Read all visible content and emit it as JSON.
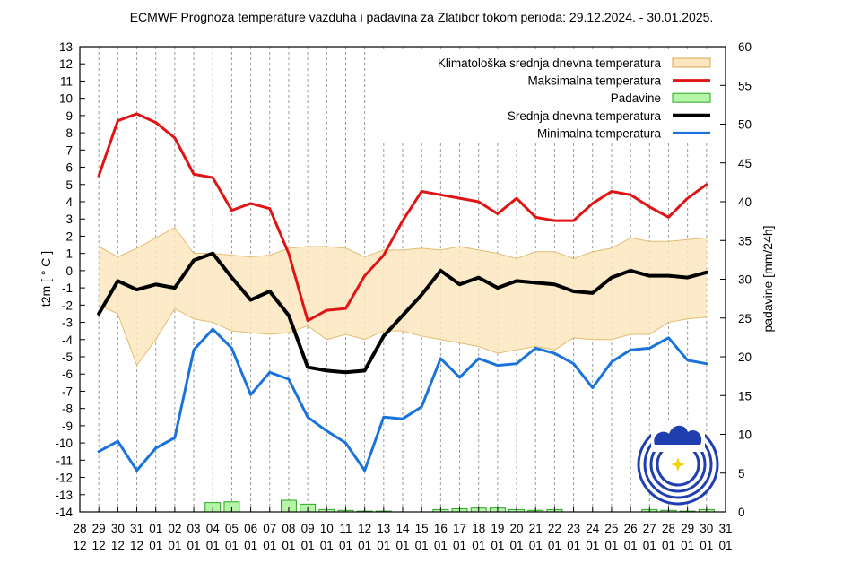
{
  "chart_data": {
    "type": "line",
    "title": "ECMWF Prognoza temperature vazduha i padavina za Zlatibor tokom perioda: 29.12.2024. - 30.01.2025.",
    "ylabel": "t2m [ ° C ]",
    "y2label": "padavine [mm/24h]",
    "ylim": [
      -14,
      13
    ],
    "y2lim": [
      0,
      60
    ],
    "yticks": [
      "13",
      "12",
      "11",
      "10",
      "9",
      "8",
      "7",
      "6",
      "5",
      "4",
      "3",
      "2",
      "1",
      "0",
      "-1",
      "-2",
      "-3",
      "-4",
      "-5",
      "-6",
      "-7",
      "-8",
      "-9",
      "-10",
      "-11",
      "-12",
      "-13",
      "-14"
    ],
    "y2ticks": [
      "60",
      "55",
      "50",
      "45",
      "40",
      "35",
      "30",
      "25",
      "20",
      "15",
      "10",
      "5",
      "0"
    ],
    "x_day": [
      "28",
      "29",
      "30",
      "31",
      "01",
      "02",
      "03",
      "04",
      "05",
      "06",
      "07",
      "08",
      "09",
      "10",
      "11",
      "12",
      "13",
      "14",
      "15",
      "16",
      "17",
      "18",
      "19",
      "20",
      "21",
      "22",
      "23",
      "24",
      "25",
      "26",
      "27",
      "28",
      "29",
      "30",
      "31"
    ],
    "x_month": [
      "12",
      "12",
      "12",
      "12",
      "01",
      "01",
      "01",
      "01",
      "01",
      "01",
      "01",
      "01",
      "01",
      "01",
      "01",
      "01",
      "01",
      "01",
      "01",
      "01",
      "01",
      "01",
      "01",
      "01",
      "01",
      "01",
      "01",
      "01",
      "01",
      "01",
      "01",
      "01",
      "01",
      "01",
      "01"
    ],
    "grid": "dashed vertical",
    "legend_position": "top-right",
    "series": [
      {
        "name": "Klimatološka srednja dnevna temperatura",
        "style": "band",
        "upper": [
          1.4,
          0.8,
          1.3,
          1.9,
          2.5,
          1.0,
          1.0,
          0.9,
          0.8,
          0.9,
          1.3,
          1.4,
          1.4,
          1.3,
          0.8,
          1.2,
          1.2,
          1.3,
          1.2,
          1.4,
          1.2,
          1.0,
          0.7,
          1.1,
          1.1,
          0.7,
          1.1,
          1.3,
          1.9,
          1.7,
          1.7,
          1.8,
          1.9
        ],
        "lower": [
          -2.0,
          -2.5,
          -5.5,
          -4.0,
          -2.2,
          -2.8,
          -3.0,
          -3.5,
          -3.6,
          -3.7,
          -3.6,
          -3.2,
          -4.0,
          -3.7,
          -4.0,
          -3.5,
          -3.5,
          -3.8,
          -4.0,
          -4.2,
          -4.4,
          -4.8,
          -4.6,
          -4.4,
          -4.6,
          -3.9,
          -4.0,
          -4.0,
          -3.7,
          -3.7,
          -3.0,
          -2.8,
          -2.7
        ]
      },
      {
        "name": "Maksimalna temperatura",
        "color": "#e01414",
        "values": [
          5.5,
          8.7,
          9.1,
          8.6,
          7.7,
          5.6,
          5.4,
          3.5,
          3.9,
          3.6,
          1.0,
          -2.9,
          -2.3,
          -2.2,
          -0.3,
          0.9,
          2.9,
          4.6,
          4.4,
          4.2,
          4.0,
          3.3,
          4.2,
          3.1,
          2.9,
          2.9,
          3.9,
          4.6,
          4.4,
          3.7,
          3.1,
          4.2,
          5.0
        ]
      },
      {
        "name": "Padavine",
        "color": "#b5f5a8",
        "values": [
          0,
          0,
          0,
          0,
          0,
          0,
          1.2,
          1.3,
          0,
          0,
          1.5,
          1.0,
          0.3,
          0.2,
          0.1,
          0.1,
          0,
          0,
          0.3,
          0.4,
          0.5,
          0.5,
          0.3,
          0.2,
          0.3,
          0,
          0,
          0,
          0,
          0.3,
          0.2,
          0.1,
          0.3
        ]
      },
      {
        "name": "Srednja dnevna temperatura",
        "color": "#000000",
        "values": [
          -2.5,
          -0.6,
          -1.1,
          -0.8,
          -1.0,
          0.6,
          1.0,
          -0.4,
          -1.7,
          -1.2,
          -2.6,
          -5.6,
          -5.8,
          -5.9,
          -5.8,
          -3.8,
          -2.6,
          -1.4,
          0.0,
          -0.8,
          -0.4,
          -1.0,
          -0.6,
          -0.7,
          -0.8,
          -1.2,
          -1.3,
          -0.4,
          0.0,
          -0.3,
          -0.3,
          -0.4,
          -0.1
        ]
      },
      {
        "name": "Minimalna temperatura",
        "color": "#1a73d9",
        "values": [
          -10.5,
          -9.9,
          -11.6,
          -10.3,
          -9.7,
          -4.6,
          -3.4,
          -4.5,
          -7.2,
          -5.9,
          -6.3,
          -8.5,
          -9.3,
          -10.0,
          -11.6,
          -8.5,
          -8.6,
          -7.9,
          -5.1,
          -6.2,
          -5.1,
          -5.5,
          -5.4,
          -4.5,
          -4.8,
          -5.4,
          -6.8,
          -5.3,
          -4.6,
          -4.5,
          -3.9,
          -5.2,
          -5.4
        ]
      }
    ]
  }
}
